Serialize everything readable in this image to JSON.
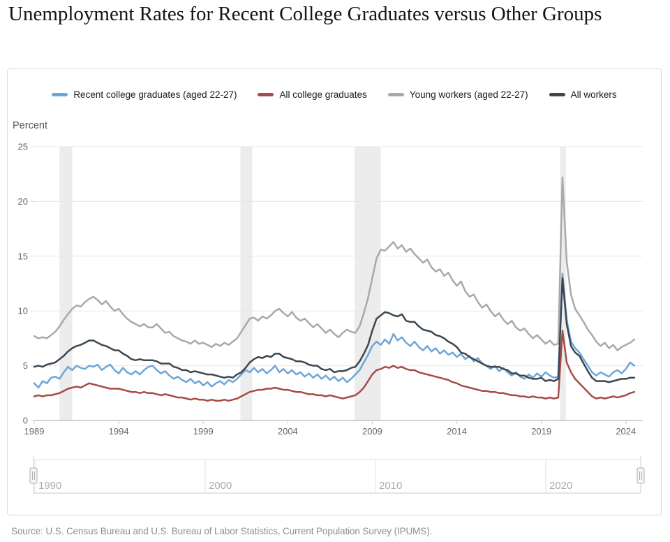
{
  "title": "Unemployment Rates for Recent College Graduates versus Other Groups",
  "source": "Source: U.S. Census Bureau and U.S. Bureau of Labor Statistics, Current Population Survey (IPUMS).",
  "colors": {
    "recession_band": "#ececec",
    "gridline": "#e7e7e7",
    "axis_line": "#a6a6a6",
    "tick_mark": "#c2d1e0",
    "axis_text": "#666666",
    "nav_line": "#e2e2e2",
    "nav_bottom_line": "#c9c9c9",
    "nav_text": "#ababab",
    "handle_fill": "#f6f6f6",
    "handle_border": "#adadad"
  },
  "chart_data": {
    "type": "line",
    "title": "",
    "xlabel": "",
    "ylabel": "Percent",
    "grid": "horizontal",
    "legend_position": "top",
    "xlim": [
      1989,
      2025
    ],
    "ylim": [
      0,
      25
    ],
    "yticks": [
      0,
      5,
      10,
      15,
      20,
      25
    ],
    "xticks": [
      1989,
      1994,
      1999,
      2004,
      2009,
      2014,
      2019,
      2024
    ],
    "x_start": 1989.0,
    "x_step": 0.25,
    "recession_bands": [
      [
        1990.5,
        1991.25
      ],
      [
        2001.2,
        2001.9
      ],
      [
        2007.95,
        2009.5
      ],
      [
        2020.1,
        2020.45
      ]
    ],
    "navigator": {
      "labels": [
        "1990",
        "2000",
        "2010",
        "2020"
      ],
      "label_years": [
        1990,
        2000,
        2010,
        2020
      ]
    },
    "series": [
      {
        "name": "Recent college graduates (aged 22-27)",
        "color": "#6fa6d5",
        "values": [
          3.4,
          3.0,
          3.6,
          3.4,
          3.9,
          4.0,
          3.8,
          4.4,
          4.9,
          4.6,
          5.0,
          4.8,
          4.7,
          5.0,
          4.9,
          5.1,
          4.6,
          4.9,
          5.1,
          4.6,
          4.3,
          4.8,
          4.4,
          4.2,
          4.5,
          4.2,
          4.6,
          4.9,
          5.0,
          4.6,
          4.3,
          4.5,
          4.1,
          3.8,
          4.0,
          3.7,
          3.5,
          3.8,
          3.4,
          3.6,
          3.2,
          3.5,
          3.1,
          3.4,
          3.6,
          3.3,
          3.7,
          3.5,
          3.8,
          4.2,
          4.6,
          4.4,
          4.8,
          4.4,
          4.7,
          4.3,
          4.6,
          5.0,
          4.4,
          4.7,
          4.3,
          4.6,
          4.2,
          4.4,
          4.0,
          4.3,
          3.9,
          4.2,
          3.8,
          4.1,
          3.7,
          4.0,
          3.6,
          3.9,
          3.5,
          3.8,
          4.2,
          4.6,
          5.3,
          6.0,
          6.8,
          7.2,
          6.9,
          7.4,
          7.0,
          7.9,
          7.3,
          7.6,
          7.1,
          6.8,
          7.2,
          6.7,
          6.4,
          6.8,
          6.3,
          6.6,
          6.1,
          6.4,
          6.0,
          6.2,
          5.8,
          6.1,
          5.6,
          5.9,
          5.4,
          5.7,
          5.2,
          5.0,
          4.7,
          5.0,
          4.5,
          4.8,
          4.4,
          4.1,
          4.4,
          4.0,
          3.8,
          4.2,
          3.9,
          4.3,
          4.0,
          4.4,
          4.1,
          3.9,
          4.0,
          13.4,
          9.2,
          7.2,
          6.6,
          6.2,
          5.6,
          5.0,
          4.4,
          4.1,
          4.4,
          4.2,
          4.0,
          4.4,
          4.6,
          4.3,
          4.7,
          5.3,
          5.0
        ]
      },
      {
        "name": "All college graduates",
        "color": "#a84a46",
        "values": [
          2.2,
          2.3,
          2.2,
          2.3,
          2.3,
          2.4,
          2.5,
          2.7,
          2.9,
          3.0,
          3.1,
          3.0,
          3.2,
          3.4,
          3.3,
          3.2,
          3.1,
          3.0,
          2.9,
          2.9,
          2.9,
          2.8,
          2.7,
          2.6,
          2.6,
          2.5,
          2.6,
          2.5,
          2.5,
          2.4,
          2.3,
          2.4,
          2.3,
          2.2,
          2.1,
          2.1,
          2.0,
          1.9,
          2.0,
          1.9,
          1.9,
          1.8,
          1.9,
          1.8,
          1.8,
          1.9,
          1.8,
          1.9,
          2.0,
          2.2,
          2.4,
          2.6,
          2.7,
          2.8,
          2.8,
          2.9,
          2.9,
          3.0,
          2.9,
          2.8,
          2.8,
          2.7,
          2.6,
          2.6,
          2.5,
          2.4,
          2.4,
          2.3,
          2.3,
          2.2,
          2.3,
          2.2,
          2.1,
          2.0,
          2.1,
          2.2,
          2.3,
          2.6,
          3.0,
          3.6,
          4.2,
          4.6,
          4.7,
          4.9,
          4.8,
          5.0,
          4.8,
          4.9,
          4.7,
          4.6,
          4.6,
          4.4,
          4.3,
          4.2,
          4.1,
          4.0,
          3.9,
          3.8,
          3.7,
          3.5,
          3.4,
          3.2,
          3.1,
          3.0,
          2.9,
          2.8,
          2.7,
          2.7,
          2.6,
          2.6,
          2.5,
          2.5,
          2.4,
          2.3,
          2.3,
          2.2,
          2.2,
          2.1,
          2.2,
          2.1,
          2.1,
          2.0,
          2.1,
          2.0,
          2.1,
          8.2,
          5.3,
          4.4,
          3.8,
          3.4,
          3.0,
          2.6,
          2.2,
          2.0,
          2.1,
          2.0,
          2.1,
          2.2,
          2.1,
          2.2,
          2.3,
          2.5,
          2.6
        ]
      },
      {
        "name": "Young workers (aged 22-27)",
        "color": "#a9a9a9",
        "values": [
          7.7,
          7.5,
          7.6,
          7.5,
          7.8,
          8.1,
          8.6,
          9.2,
          9.7,
          10.2,
          10.5,
          10.4,
          10.8,
          11.1,
          11.3,
          11.0,
          10.6,
          10.9,
          10.4,
          10.0,
          10.2,
          9.7,
          9.3,
          9.0,
          8.8,
          8.6,
          8.8,
          8.5,
          8.5,
          8.8,
          8.4,
          8.0,
          8.1,
          7.7,
          7.5,
          7.3,
          7.2,
          7.0,
          7.3,
          7.0,
          7.1,
          6.9,
          6.7,
          7.0,
          6.8,
          7.1,
          6.9,
          7.2,
          7.5,
          8.1,
          8.7,
          9.3,
          9.4,
          9.1,
          9.5,
          9.3,
          9.6,
          10.0,
          10.2,
          9.8,
          9.5,
          9.9,
          9.4,
          9.1,
          9.3,
          8.9,
          8.5,
          8.8,
          8.4,
          8.0,
          8.3,
          7.9,
          7.6,
          8.0,
          8.3,
          8.1,
          8.0,
          8.6,
          9.8,
          11.2,
          13.0,
          14.8,
          15.6,
          15.5,
          15.9,
          16.3,
          15.7,
          16.0,
          15.4,
          15.7,
          15.2,
          14.8,
          14.4,
          14.7,
          14.0,
          13.6,
          13.8,
          13.2,
          13.5,
          12.8,
          12.3,
          12.7,
          11.8,
          11.3,
          11.5,
          10.8,
          10.3,
          10.6,
          10.0,
          9.5,
          9.8,
          9.2,
          8.8,
          9.1,
          8.5,
          8.2,
          8.4,
          7.9,
          7.5,
          7.8,
          7.4,
          7.0,
          7.3,
          6.9,
          7.0,
          22.2,
          14.5,
          11.5,
          10.2,
          9.6,
          9.0,
          8.3,
          7.8,
          7.2,
          6.8,
          7.1,
          6.6,
          6.9,
          6.4,
          6.7,
          6.9,
          7.1,
          7.4
        ]
      },
      {
        "name": "All workers",
        "color": "#3b4751",
        "values": [
          4.9,
          5.0,
          4.9,
          5.1,
          5.2,
          5.3,
          5.6,
          5.9,
          6.3,
          6.6,
          6.8,
          6.9,
          7.1,
          7.3,
          7.3,
          7.1,
          6.9,
          6.8,
          6.6,
          6.4,
          6.4,
          6.1,
          5.9,
          5.6,
          5.5,
          5.6,
          5.5,
          5.5,
          5.5,
          5.4,
          5.2,
          5.2,
          5.2,
          4.9,
          4.8,
          4.6,
          4.6,
          4.4,
          4.5,
          4.4,
          4.3,
          4.2,
          4.2,
          4.1,
          4.0,
          3.9,
          4.0,
          3.9,
          4.2,
          4.4,
          4.8,
          5.3,
          5.6,
          5.8,
          5.7,
          5.9,
          5.8,
          6.1,
          6.1,
          5.8,
          5.7,
          5.6,
          5.4,
          5.4,
          5.3,
          5.1,
          5.0,
          5.0,
          4.7,
          4.6,
          4.7,
          4.4,
          4.5,
          4.5,
          4.6,
          4.8,
          4.9,
          5.4,
          6.1,
          6.9,
          8.2,
          9.3,
          9.6,
          9.9,
          9.8,
          9.6,
          9.5,
          9.7,
          9.1,
          9.0,
          9.0,
          8.6,
          8.3,
          8.2,
          8.1,
          7.8,
          7.7,
          7.5,
          7.2,
          7.0,
          6.7,
          6.2,
          6.1,
          5.8,
          5.6,
          5.4,
          5.2,
          5.0,
          4.9,
          4.9,
          4.9,
          4.7,
          4.6,
          4.3,
          4.3,
          4.1,
          4.1,
          3.9,
          3.8,
          3.8,
          3.9,
          3.6,
          3.7,
          3.6,
          3.8,
          13.0,
          8.8,
          6.8,
          6.2,
          5.9,
          5.2,
          4.5,
          3.9,
          3.6,
          3.6,
          3.6,
          3.5,
          3.6,
          3.7,
          3.8,
          3.8,
          3.9,
          3.9
        ]
      }
    ]
  }
}
